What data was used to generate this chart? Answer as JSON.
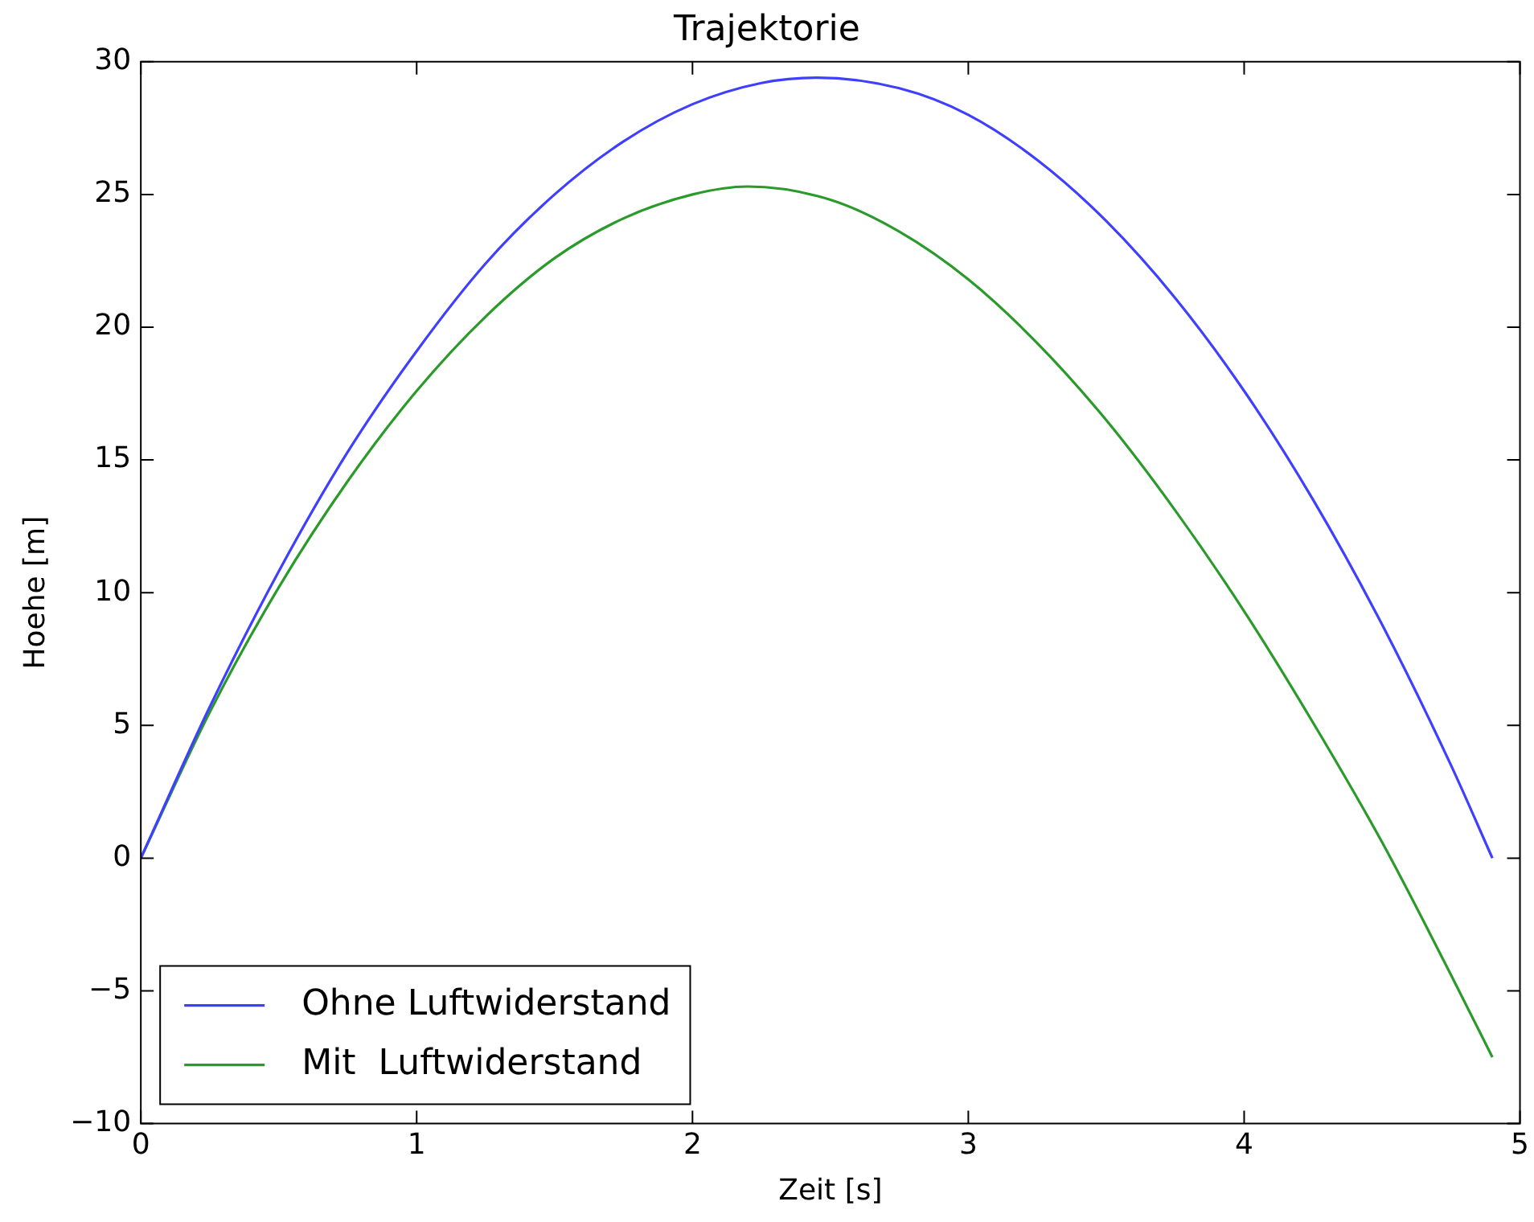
{
  "chart_data": {
    "type": "line",
    "title": "Trajektorie",
    "xlabel": "Zeit [s]",
    "ylabel": "Hoehe [m]",
    "xlim": [
      0,
      5
    ],
    "xticks": [
      0,
      1,
      2,
      3,
      4,
      5
    ],
    "ylim": [
      -10,
      30
    ],
    "yticks": [
      {
        "value": -10,
        "label": "−10"
      },
      {
        "value": -5,
        "label": "−5"
      },
      0,
      5,
      10,
      15,
      20,
      25,
      30
    ],
    "grid": false,
    "legend": "bottom left",
    "marker": "none",
    "line_style": "solid",
    "series": [
      {
        "name": "Ohne Luftwiderstand",
        "color": "#3f3fff",
        "x": [
          0,
          0.25,
          0.5,
          0.75,
          1,
          1.25,
          1.5,
          1.75,
          2,
          2.25,
          2.45,
          2.75,
          3,
          3.25,
          3.5,
          3.75,
          4,
          4.25,
          4.5,
          4.75,
          4.9
        ],
        "values": [
          0,
          5.7,
          10.8,
          15.3,
          19.1,
          22.4,
          25.0,
          27.0,
          28.4,
          29.2,
          29.4,
          29.0,
          28.0,
          26.3,
          24.0,
          21.1,
          17.6,
          13.5,
          8.8,
          3.5,
          0
        ]
      },
      {
        "name": "Mit  Luftwiderstand",
        "color": "#2a9a2a",
        "x": [
          0,
          0.25,
          0.5,
          0.75,
          1,
          1.25,
          1.5,
          1.75,
          2,
          2.2,
          2.5,
          2.75,
          3,
          3.25,
          3.5,
          3.75,
          4,
          4.25,
          4.5,
          4.75,
          4.9
        ],
        "values": [
          0,
          5.5,
          10.2,
          14.2,
          17.6,
          20.4,
          22.6,
          24.1,
          25.0,
          25.3,
          24.8,
          23.6,
          21.8,
          19.4,
          16.5,
          13.1,
          9.3,
          5.1,
          0.6,
          -4.4,
          -7.5
        ]
      }
    ]
  }
}
